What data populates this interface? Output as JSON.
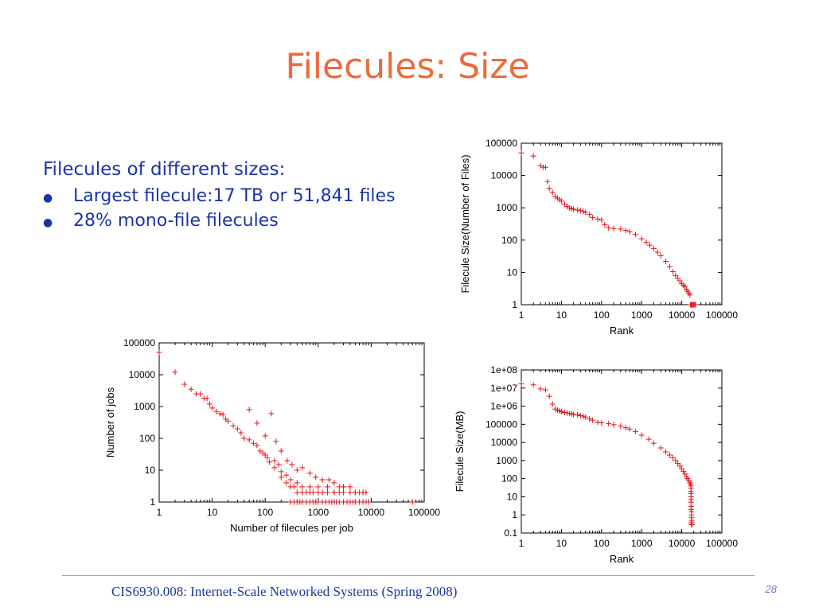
{
  "title": "Filecules: Size",
  "bullets": {
    "intro": "Filecules of different sizes:",
    "items": [
      "Largest filecule:17 TB or 51,841 files",
      "28% mono-file filecules"
    ]
  },
  "footer": {
    "text": "CIS6930.008: Internet-Scale Networked Systems (Spring 2008)",
    "page": "28"
  },
  "colors": {
    "title": "#ee6a3a",
    "text": "#1a35a5",
    "marker": "#e8131a",
    "rule": "#ee8a5a"
  },
  "chart_data": [
    {
      "id": "files",
      "type": "scatter",
      "title": "",
      "xlabel": "Rank",
      "ylabel": "Filecule Size(Number of Files)",
      "xscale": "log",
      "yscale": "log",
      "xlim": [
        1,
        100000
      ],
      "ylim": [
        1,
        100000
      ],
      "xticks": [
        "1",
        "10",
        "100",
        "1000",
        "10000",
        "100000"
      ],
      "yticks": [
        "1",
        "10",
        "100",
        "1000",
        "10000",
        "100000"
      ],
      "grid": false,
      "legend": "none",
      "marker": "+",
      "series": [
        {
          "x": [
            1,
            2,
            3,
            3.5,
            4,
            4.5,
            5,
            6,
            7,
            8,
            9,
            10,
            12,
            14,
            16,
            18,
            20,
            25,
            30,
            35,
            40,
            50,
            60,
            80,
            100,
            120,
            150,
            200,
            300,
            400,
            500,
            700,
            1000,
            1300,
            1600,
            2000,
            2500,
            3000,
            4000,
            5000,
            6000,
            7000,
            8000,
            9000,
            10000,
            11000,
            12000,
            13000,
            14000,
            15000,
            16000,
            16500,
            17000,
            17500,
            18000,
            19000,
            20000,
            21000,
            22000
          ],
          "y": [
            50000,
            40000,
            20000,
            18000,
            18000,
            6500,
            4000,
            3000,
            2200,
            2000,
            1800,
            1600,
            1300,
            1100,
            1000,
            950,
            900,
            860,
            820,
            780,
            720,
            620,
            500,
            450,
            420,
            300,
            240,
            230,
            220,
            200,
            180,
            150,
            110,
            85,
            70,
            55,
            42,
            33,
            22,
            15,
            10.5,
            8,
            6.5,
            5.5,
            4.5,
            4,
            3.6,
            3,
            2.6,
            2.3,
            2,
            1,
            1,
            1,
            1,
            1,
            1,
            1,
            1
          ]
        }
      ]
    },
    {
      "id": "jobs",
      "type": "scatter",
      "title": "",
      "xlabel": "Number of filecules per job",
      "ylabel": "Number of jobs",
      "xscale": "log",
      "yscale": "log",
      "xlim": [
        1,
        100000
      ],
      "ylim": [
        1,
        100000
      ],
      "xticks": [
        "1",
        "10",
        "100",
        "1000",
        "10000",
        "100000"
      ],
      "yticks": [
        "1",
        "10",
        "100",
        "1000",
        "10000",
        "100000"
      ],
      "grid": false,
      "legend": "none",
      "marker": "+",
      "series": [
        {
          "x": [
            1,
            2,
            3,
            4,
            5,
            6,
            7,
            8,
            9,
            10,
            12,
            14,
            16,
            18,
            20,
            25,
            30,
            35,
            40,
            50,
            60,
            70,
            80,
            90,
            100,
            110,
            120,
            150,
            150,
            180,
            200,
            200,
            250,
            250,
            300,
            300,
            350,
            400,
            400,
            500,
            500,
            600,
            700,
            700,
            800,
            1000,
            1000,
            1200,
            1500,
            1500,
            2000,
            2000,
            2500,
            3000,
            3000,
            4000,
            5000,
            6000,
            7000,
            8000,
            50,
            70,
            100,
            130,
            160,
            200,
            260,
            320,
            400,
            500,
            700,
            900,
            1200,
            1600,
            2000,
            2500,
            3000,
            4000,
            5000,
            7000,
            300,
            350,
            400,
            450,
            500,
            600,
            700,
            800,
            900,
            1000,
            1200,
            1400,
            1600,
            1800,
            2000,
            2200,
            2500,
            3000,
            3500,
            4000,
            4500,
            5000,
            6000,
            7000,
            8000,
            9000,
            60000
          ],
          "y": [
            50000,
            12000,
            5000,
            3500,
            2500,
            2500,
            1800,
            1800,
            1200,
            900,
            700,
            600,
            550,
            400,
            350,
            250,
            200,
            150,
            100,
            90,
            70,
            60,
            40,
            35,
            30,
            25,
            18,
            20,
            12,
            15,
            9,
            6,
            7,
            4,
            5,
            3,
            3,
            4,
            2,
            3,
            2,
            2,
            2,
            3,
            2,
            2,
            3,
            2,
            2,
            3,
            2,
            2,
            2,
            2,
            3,
            2,
            2,
            2,
            2,
            2,
            800,
            300,
            120,
            600,
            80,
            40,
            20,
            15,
            10,
            12,
            8,
            6,
            5,
            5,
            4,
            3,
            3,
            3,
            2,
            2,
            1,
            1,
            1,
            1,
            1,
            1,
            1,
            1,
            1,
            1,
            1,
            1,
            1,
            1,
            1,
            1,
            1,
            1,
            1,
            1,
            1,
            1,
            1,
            1,
            1,
            1,
            1
          ]
        }
      ]
    },
    {
      "id": "mb",
      "type": "scatter",
      "title": "",
      "xlabel": "Rank",
      "ylabel": "Filecule Size(MB)",
      "xscale": "log",
      "yscale": "log",
      "xlim": [
        1,
        100000
      ],
      "ylim": [
        0.1,
        100000000
      ],
      "xticks": [
        "1",
        "10",
        "100",
        "1000",
        "10000",
        "100000"
      ],
      "yticks": [
        "0.1",
        "1",
        "10",
        "100",
        "1000",
        "10000",
        "100000",
        "1e+06",
        "1e+07",
        "1e+08"
      ],
      "grid": false,
      "legend": "none",
      "marker": "+",
      "series": [
        {
          "x": [
            1,
            2,
            3,
            4,
            5,
            6,
            7,
            8,
            9,
            10,
            12,
            14,
            16,
            18,
            20,
            25,
            30,
            35,
            40,
            50,
            60,
            80,
            100,
            150,
            200,
            300,
            400,
            500,
            700,
            1000,
            1500,
            2000,
            3000,
            4000,
            5000,
            6000,
            7000,
            8000,
            9000,
            10000,
            11000,
            12000,
            13000,
            14000,
            15000,
            16000,
            16500,
            17000,
            17000,
            17000,
            17000,
            17000,
            17000,
            17000,
            17000,
            17000,
            17500,
            17500,
            17500,
            17500,
            17500,
            17500,
            17500,
            17500,
            17500,
            17500,
            18000
          ],
          "y": [
            17000000,
            15000000,
            9000000,
            8000000,
            3500000,
            1300000,
            700000,
            600000,
            550000,
            500000,
            450000,
            420000,
            400000,
            380000,
            350000,
            330000,
            300000,
            280000,
            250000,
            200000,
            170000,
            130000,
            120000,
            110000,
            95000,
            80000,
            65000,
            55000,
            40000,
            25000,
            15000,
            9000,
            5000,
            3000,
            2000,
            1400,
            1000,
            700,
            500,
            350,
            250,
            180,
            130,
            100,
            80,
            60,
            50,
            40,
            30,
            20,
            15,
            10,
            7,
            5,
            3,
            2,
            1.5,
            1,
            0.7,
            0.5,
            0.4,
            0.3,
            0.3,
            0.3,
            0.3,
            0.3,
            0.3
          ]
        }
      ]
    }
  ]
}
